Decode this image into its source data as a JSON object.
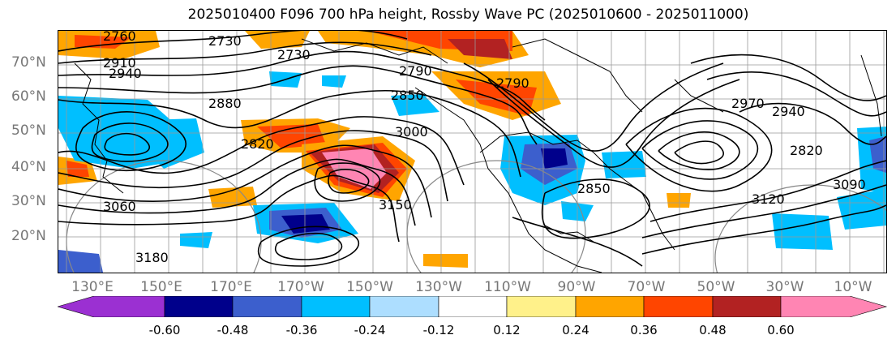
{
  "title": "2025010400 F096 700 hPa height, Rossby Wave PC (2025010600 - 2025011000)",
  "lat_labels": [
    "70°N",
    "60°N",
    "50°N",
    "40°N",
    "30°N",
    "20°N"
  ],
  "lon_labels": [
    "130°E",
    "150°E",
    "170°E",
    "170°W",
    "150°W",
    "130°W",
    "110°W",
    "90°W",
    "70°W",
    "50°W",
    "30°W",
    "10°W"
  ],
  "contour_labels": [
    "2760",
    "2730",
    "2910",
    "2940",
    "2790",
    "2820",
    "2850",
    "2880",
    "3000",
    "3060",
    "3150",
    "3180",
    "3120",
    "3090",
    "2970",
    "2820",
    "2940",
    "2730",
    "2790",
    "2850"
  ],
  "colorbar": {
    "colors": [
      "#9b30d2",
      "#00008b",
      "#3c5fcd",
      "#00bfff",
      "#addeff",
      "#ffffff",
      "#fff18a",
      "#ffa500",
      "#ff4500",
      "#b22222",
      "#ff85b3"
    ],
    "ticks": [
      "-0.60",
      "-0.48",
      "-0.36",
      "-0.24",
      "-0.12",
      "0.12",
      "0.24",
      "0.36",
      "0.48",
      "0.60"
    ]
  }
}
